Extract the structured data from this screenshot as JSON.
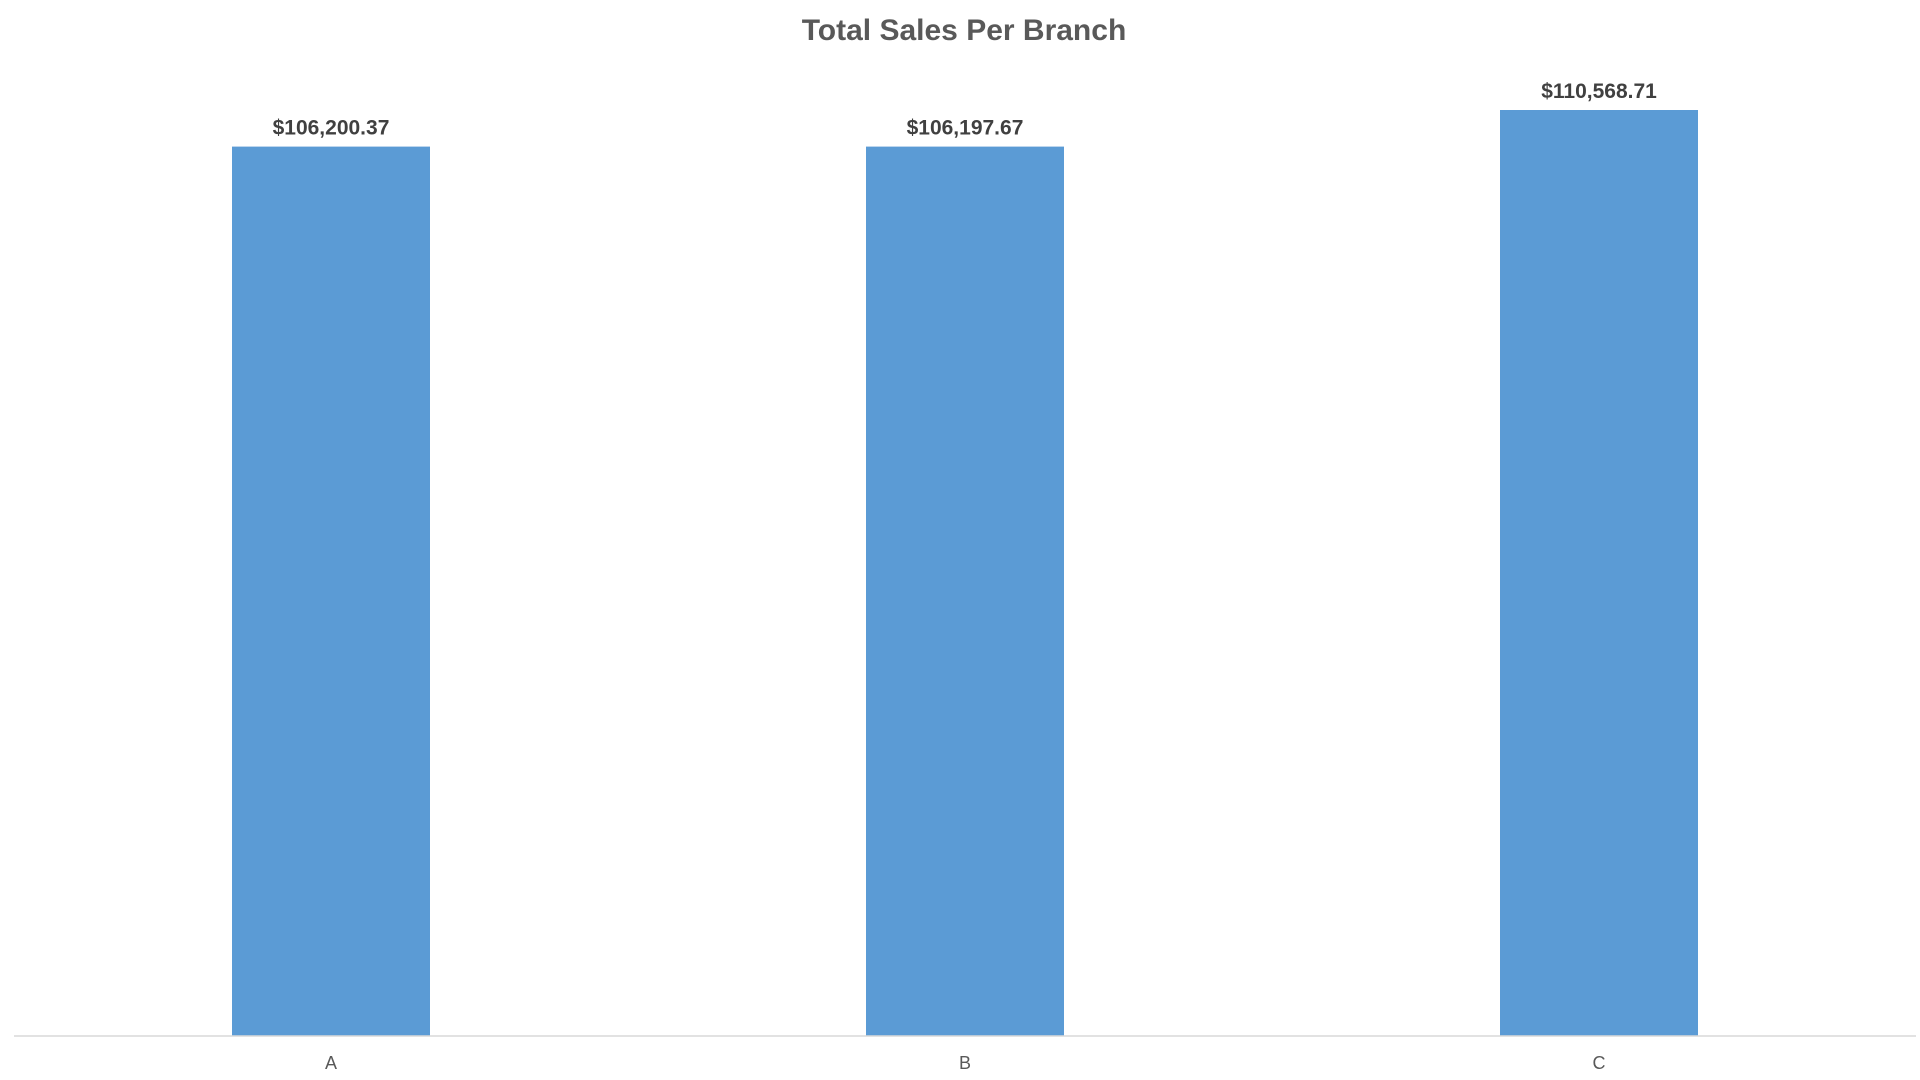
{
  "chart_data": {
    "type": "bar",
    "title": "Total Sales Per Branch",
    "categories": [
      "A",
      "B",
      "C"
    ],
    "values": [
      106200.37,
      106197.67,
      110568.71
    ],
    "data_labels": [
      "$106,200.37",
      "$106,197.67",
      "$110,568.71"
    ],
    "xlabel": "",
    "ylabel": "",
    "ylim": [
      0,
      110568.71
    ],
    "grid": false,
    "legend": "none",
    "bar_color": "#5B9BD5",
    "axis_color": "#D9D9D9"
  }
}
